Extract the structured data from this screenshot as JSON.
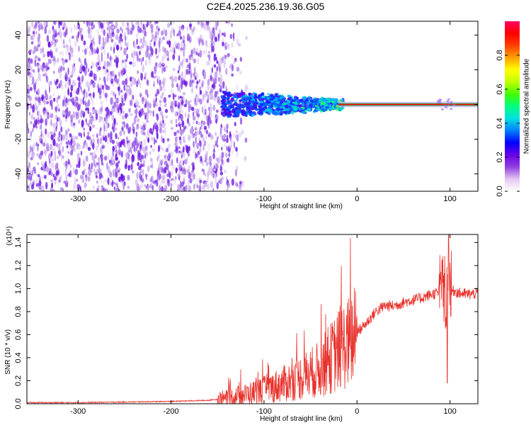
{
  "page_title": "C2E4.2025.236.19.36.G05",
  "chart_data": [
    {
      "type": "heatmap",
      "xlabel": "Height of straight line (km)",
      "ylabel": "Frequency (Hz)",
      "xlim": [
        -355,
        130
      ],
      "ylim": [
        -50,
        48
      ],
      "x_ticks": [
        -300,
        -200,
        -100,
        0,
        100
      ],
      "y_ticks": [
        -40,
        -20,
        0,
        20,
        40
      ],
      "colorbar": {
        "label": "Normalized spectral amplitude",
        "range": [
          0,
          1
        ],
        "ticks": [
          "0.0",
          "0.2",
          "0.4",
          "0.6",
          "0.8"
        ],
        "colors": [
          "#ffffff",
          "#e6c8f0",
          "#9040e0",
          "#6a00e8",
          "#0000ff",
          "#0080ff",
          "#00e0e0",
          "#00ff80",
          "#40ff00",
          "#c0ff00",
          "#ffff00",
          "#ffa000",
          "#ff4000",
          "#ff0000",
          "#ff0060"
        ]
      },
      "notes": "Broadband noise (purple) for heights below about -115 km; narrowband carrier near 0 Hz from about -140 km upward, saturating (red) above about -20 km.",
      "carrier_line": {
        "x_start": -140,
        "x_end": 130,
        "frequency": 0
      }
    },
    {
      "type": "line",
      "xlabel": "Height of straight line (km)",
      "ylabel": "SNR (10 * v/v)",
      "y_multiplier": "(x10⁴)",
      "xlim": [
        -355,
        130
      ],
      "ylim": [
        0,
        1.47
      ],
      "x_ticks": [
        -300,
        -200,
        -100,
        0,
        100
      ],
      "y_ticks": [
        "0.0",
        "0.2",
        "0.4",
        "0.6",
        "0.8",
        "1.0",
        "1.2",
        "1.4"
      ],
      "series": [
        {
          "color": "#e8302a",
          "x": [
            -355,
            -300,
            -250,
            -200,
            -160,
            -140,
            -120,
            -100,
            -80,
            -60,
            -40,
            -25,
            -15,
            -5,
            0,
            10,
            20,
            30,
            40,
            50,
            60,
            70,
            80,
            85,
            90,
            95,
            100,
            105,
            110,
            120,
            130
          ],
          "y": [
            0.01,
            0.01,
            0.015,
            0.02,
            0.03,
            0.05,
            0.08,
            0.12,
            0.17,
            0.23,
            0.3,
            0.42,
            0.5,
            0.55,
            0.62,
            0.7,
            0.8,
            0.85,
            0.85,
            0.88,
            0.9,
            0.92,
            0.95,
            0.96,
            0.97,
            0.95,
            0.98,
            0.98,
            0.96,
            0.95,
            0.96
          ]
        }
      ]
    }
  ]
}
